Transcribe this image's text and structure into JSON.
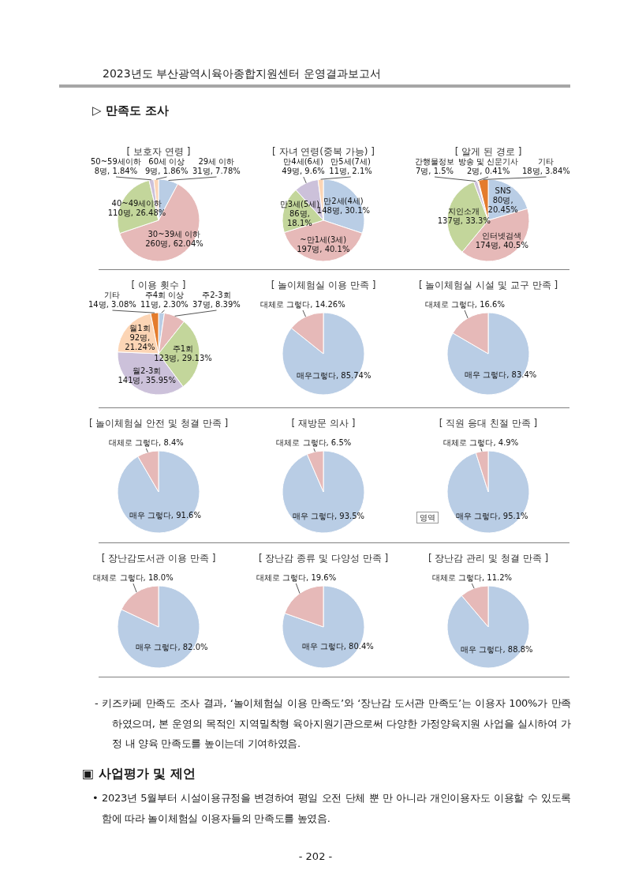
{
  "chart_data": [
    {
      "type": "other",
      "annotations": [
        "2023년도 부산광역시육아종합지원센터 운영결과보고서",
        "▷ 만족도 조사"
      ]
    },
    {
      "type": "pie",
      "title": "[ 보호자 연령 ]",
      "categories": [
        "29세 이하",
        "30~39세 이하",
        "40~49세이하",
        "50~59세이하",
        "60세 이상"
      ],
      "values": [
        7.78,
        62.04,
        26.48,
        1.84,
        1.86
      ],
      "value_labels": [
        "31명, 7.78%",
        "260명, 62.04%",
        "110명, 26.48%",
        "8명, 1.84%",
        "9명, 1.86%"
      ],
      "colors": [
        "#b9cde5",
        "#e6b9b8",
        "#c3d69b",
        "#ccc1da",
        "#fcd5b5"
      ]
    },
    {
      "type": "pie",
      "title": "[ 자녀 연령(중복 가능) ]",
      "categories": [
        "만2세(4세)",
        "~만1세(3세)",
        "만3세(5세)",
        "만4세(6세)",
        "만5세(7세)"
      ],
      "values": [
        30.1,
        40.1,
        18.1,
        9.6,
        2.1
      ],
      "value_labels": [
        "148명, 30.1%",
        "197명, 40.1%",
        "86명, 18.1%",
        "49명, 9.6%",
        "11명, 2.1%"
      ],
      "colors": [
        "#b9cde5",
        "#e6b9b8",
        "#c3d69b",
        "#ccc1da",
        "#fcd5b5"
      ]
    },
    {
      "type": "pie",
      "title": "[ 알게 된 경로 ]",
      "categories": [
        "SNS",
        "인터넷검색",
        "지인소개",
        "간행물정보",
        "방송 및 신문기사",
        "기타"
      ],
      "values": [
        20.45,
        40.5,
        33.3,
        1.5,
        0.41,
        3.84
      ],
      "value_labels": [
        "80명, 20.45%",
        "174명, 40.5%",
        "137명, 33.3%",
        "7명, 1.5%",
        "2명, 0.41%",
        "18명, 3.84%"
      ],
      "colors": [
        "#b9cde5",
        "#e6b9b8",
        "#c3d69b",
        "#ccc1da",
        "#fcd5b5",
        "#e47c2d"
      ]
    },
    {
      "type": "pie",
      "title": "[ 이용 횟수 ]",
      "categories": [
        "주4회 이상",
        "주2-3회",
        "주1회",
        "월2-3회",
        "월1회",
        "기타"
      ],
      "values": [
        2.3,
        8.39,
        29.13,
        35.95,
        21.24,
        3.08
      ],
      "value_labels": [
        "11명, 2.30%",
        "37명, 8.39%",
        "123명, 29.13%",
        "141명, 35.95%",
        "92명, 21.24%",
        "14명, 3.08%"
      ],
      "colors": [
        "#b9cde5",
        "#e6b9b8",
        "#c3d69b",
        "#ccc1da",
        "#fcd5b5",
        "#e47c2d"
      ]
    },
    {
      "type": "pie",
      "title": "[ 놀이체험실 이용 만족 ]",
      "categories": [
        "매우그렇다",
        "대체로 그렇다"
      ],
      "values": [
        85.74,
        14.26
      ],
      "value_labels": [
        "85.74%",
        "14.26%"
      ],
      "colors": [
        "#b9cde5",
        "#e6b9b8"
      ]
    },
    {
      "type": "pie",
      "title": "[ 놀이체험실 시설 및 교구 만족 ]",
      "categories": [
        "매우 그렇다",
        "대체로 그렇다"
      ],
      "values": [
        83.4,
        16.6
      ],
      "value_labels": [
        "83.4%",
        "16.6%"
      ],
      "colors": [
        "#b9cde5",
        "#e6b9b8"
      ]
    },
    {
      "type": "pie",
      "title": "[ 놀이체험실 안전 및 청결 만족 ]",
      "categories": [
        "매우 그렇다",
        "대체로 그렇다"
      ],
      "values": [
        91.6,
        8.4
      ],
      "value_labels": [
        "91.6%",
        "8.4%"
      ],
      "colors": [
        "#b9cde5",
        "#e6b9b8"
      ]
    },
    {
      "type": "pie",
      "title": "[ 재방문 의사 ]",
      "categories": [
        "매우 그렇다",
        "대체로 그렇다"
      ],
      "values": [
        93.5,
        6.5
      ],
      "value_labels": [
        "93.5%",
        "6.5%"
      ],
      "colors": [
        "#b9cde5",
        "#e6b9b8"
      ]
    },
    {
      "type": "pie",
      "title": "[ 직원 응대 친절 만족 ]",
      "categories": [
        "매우 그렇다",
        "대체로 그렇다"
      ],
      "values": [
        95.1,
        4.9
      ],
      "value_labels": [
        "95.1%",
        "4.9%"
      ],
      "colors": [
        "#b9cde5",
        "#e6b9b8"
      ],
      "annotations": [
        "영역"
      ]
    },
    {
      "type": "pie",
      "title": "[ 장난감도서관 이용 만족 ]",
      "categories": [
        "매우 그렇다",
        "대체로 그렇다"
      ],
      "values": [
        82.0,
        18.0
      ],
      "value_labels": [
        "82.0%",
        "18.0%"
      ],
      "colors": [
        "#b9cde5",
        "#e6b9b8"
      ]
    },
    {
      "type": "pie",
      "title": "[ 장난감 종류 및 다양성 만족 ]",
      "categories": [
        "매우 그렇다",
        "대체로 그렇다"
      ],
      "values": [
        80.4,
        19.6
      ],
      "value_labels": [
        "80.4%",
        "19.6%"
      ],
      "colors": [
        "#b9cde5",
        "#e6b9b8"
      ]
    },
    {
      "type": "pie",
      "title": "[ 장난감 관리 및 청결 만족 ]",
      "categories": [
        "매우 그렇다",
        "대체로 그렇다"
      ],
      "values": [
        88.8,
        11.2
      ],
      "value_labels": [
        "88.8%",
        "11.2%"
      ],
      "colors": [
        "#b9cde5",
        "#e6b9b8"
      ]
    },
    {
      "type": "other",
      "annotations": [
        "- 키즈카페 만족도 조사 결과, ‘놀이체험실 이용 만족도’와 ‘장난감 도서관 만족도’는 이용자 100%가 만족하였으며, 본 운영의 목적인 지역밀착형 육아지원기관으로써 다양한 가정양육지원 사업을 실시하여 가정 내 양육 만족도를 높이는데 기여하였음.",
        "▣ 사업평가 및 제언",
        "• 2023년 5월부터 시설이용규정을 변경하여 평일 오전 단체 뿐 만 아니라 개인이용자도 이용할 수 있도록 함에 따라 놀이체험실 이용자들의 만족도를 높였음.",
        "- 202 -"
      ]
    }
  ]
}
